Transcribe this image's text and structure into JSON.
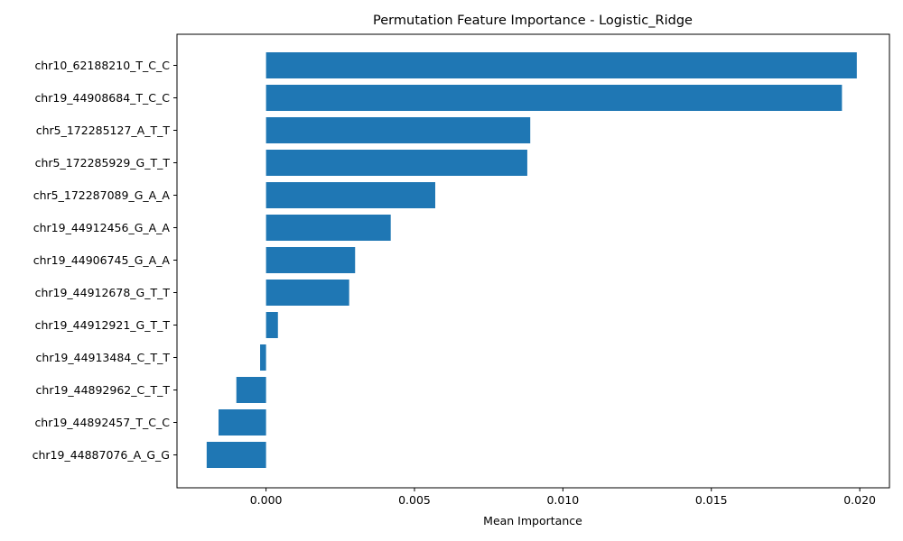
{
  "chart_data": {
    "type": "bar",
    "orientation": "horizontal",
    "title": "Permutation Feature Importance - Logistic_Ridge",
    "xlabel": "Mean Importance",
    "ylabel": "",
    "categories": [
      "chr10_62188210_T_C_C",
      "chr19_44908684_T_C_C",
      "chr5_172285127_A_T_T",
      "chr5_172285929_G_T_T",
      "chr5_172287089_G_A_A",
      "chr19_44912456_G_A_A",
      "chr19_44906745_G_A_A",
      "chr19_44912678_G_T_T",
      "chr19_44912921_G_T_T",
      "chr19_44913484_C_T_T",
      "chr19_44892962_C_T_T",
      "chr19_44892457_T_C_C",
      "chr19_44887076_A_G_G"
    ],
    "values": [
      0.0199,
      0.0194,
      0.0089,
      0.0088,
      0.0057,
      0.0042,
      0.003,
      0.0028,
      0.0004,
      -0.0002,
      -0.001,
      -0.0016,
      -0.002
    ],
    "xlim": [
      -0.003,
      0.021
    ],
    "xticks": [
      0.0,
      0.005,
      0.01,
      0.015,
      0.02
    ],
    "xtick_labels": [
      "0.000",
      "0.005",
      "0.010",
      "0.015",
      "0.020"
    ],
    "bar_color": "#1f77b4",
    "grid": false,
    "legend": false
  }
}
